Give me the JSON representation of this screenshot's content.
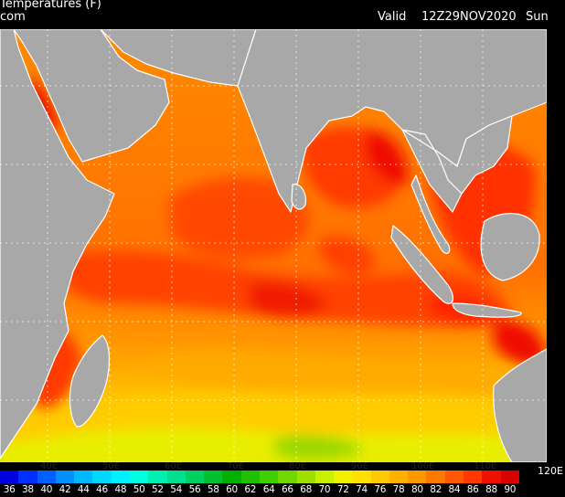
{
  "header": {
    "title": "Temperatures (F)",
    "source": "com",
    "valid_label": "Valid",
    "valid_time": "12Z29NOV2020",
    "day": "Sun"
  },
  "map": {
    "region": "Indian Ocean",
    "variable": "sea surface temperature",
    "longitude_labels": [
      "40E",
      "50E",
      "60E",
      "70E",
      "80E",
      "90E",
      "100E",
      "110E",
      "120E"
    ],
    "colors": {
      "land": "#a8a8a8",
      "coast": "#ffffff",
      "grid": "#ffffff",
      "hot": "#e60000",
      "warm": "#ff6a00",
      "mild": "#ffa500",
      "cool": "#ffd700",
      "cold": "#c8f000",
      "coldest": "#80d400"
    }
  },
  "legend": {
    "values": [
      "36",
      "38",
      "40",
      "42",
      "44",
      "46",
      "48",
      "50",
      "52",
      "54",
      "56",
      "58",
      "60",
      "62",
      "64",
      "66",
      "68",
      "70",
      "72",
      "74",
      "76",
      "78",
      "80",
      "82",
      "84",
      "86",
      "88",
      "90"
    ],
    "colors": [
      "#0000e0",
      "#0030ff",
      "#0060ff",
      "#0090ff",
      "#00b8ff",
      "#00d8ff",
      "#00f0ff",
      "#00ffe0",
      "#00f0b0",
      "#00e090",
      "#00d060",
      "#00c030",
      "#00b000",
      "#20c000",
      "#40d000",
      "#70d800",
      "#a0e000",
      "#c8f000",
      "#f0f000",
      "#ffe000",
      "#ffc800",
      "#ffb000",
      "#ff9800",
      "#ff7800",
      "#ff5800",
      "#ff3800",
      "#f01000",
      "#d80000"
    ]
  }
}
